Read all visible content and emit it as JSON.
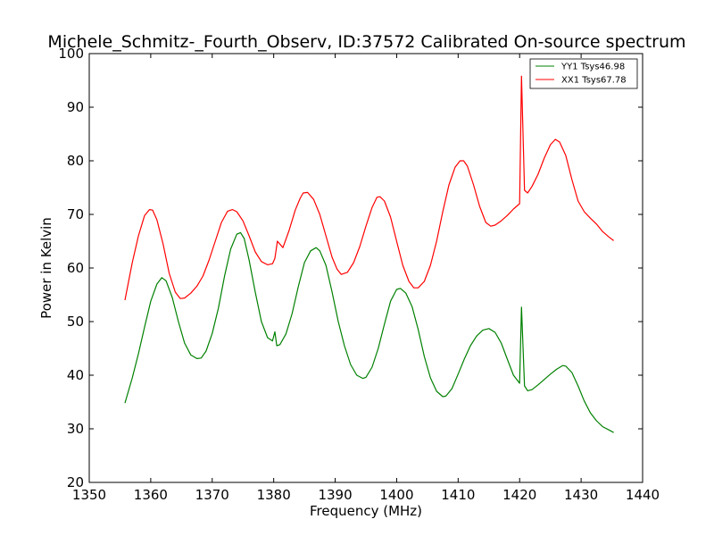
{
  "chart_data": {
    "type": "line",
    "title": "Michele_Schmitz-_Fourth_Observ, ID:37572 Calibrated On-source spectrum",
    "xlabel": "Frequency (MHz)",
    "ylabel": "Power in Kelvin",
    "xlim": [
      1350,
      1440
    ],
    "ylim": [
      20,
      100
    ],
    "xticks": [
      1350,
      1360,
      1370,
      1380,
      1390,
      1400,
      1410,
      1420,
      1430,
      1440
    ],
    "yticks": [
      20,
      30,
      40,
      50,
      60,
      70,
      80,
      90,
      100
    ],
    "grid": false,
    "legend_position": "top-right",
    "series": [
      {
        "name": "YY1 Tsys46.98",
        "color": "#008000",
        "x": [
          1355.8,
          1357,
          1358,
          1359,
          1360,
          1361,
          1361.8,
          1362.5,
          1363.5,
          1364.5,
          1365.5,
          1366.5,
          1367.5,
          1368.2,
          1369,
          1370,
          1371,
          1372,
          1373,
          1374,
          1374.6,
          1375.2,
          1376,
          1377,
          1378,
          1379,
          1379.8,
          1380.2,
          1380.5,
          1381,
          1382,
          1383,
          1384,
          1385,
          1386,
          1386.9,
          1387.5,
          1388.5,
          1389.5,
          1390.5,
          1391.5,
          1392.5,
          1393.5,
          1394.5,
          1395,
          1396,
          1397,
          1398,
          1399,
          1400,
          1400.6,
          1401.5,
          1402.5,
          1403.5,
          1404.5,
          1405.5,
          1406.5,
          1407.5,
          1408,
          1409,
          1410,
          1411,
          1412,
          1413,
          1414,
          1415,
          1416,
          1417,
          1418,
          1419,
          1420,
          1420.3,
          1420.8,
          1421.3,
          1422,
          1423,
          1424,
          1425,
          1426,
          1427,
          1427.5,
          1428.5,
          1429.5,
          1430.5,
          1431.5,
          1432.5,
          1433.5,
          1434.5,
          1435.3
        ],
        "values": [
          34.8,
          39.5,
          44,
          49,
          53.8,
          57,
          58.2,
          57.6,
          54.5,
          50,
          46,
          43.8,
          43.1,
          43.2,
          44.5,
          47.8,
          52.5,
          58.5,
          63.5,
          66.3,
          66.6,
          65.5,
          61.5,
          55.5,
          50,
          47,
          46.4,
          48.1,
          45.5,
          45.7,
          47.7,
          51.5,
          56.5,
          61,
          63.2,
          63.8,
          63.2,
          60.5,
          55.5,
          50,
          45.5,
          42,
          40,
          39.4,
          39.6,
          41.5,
          45,
          49.5,
          53.8,
          56,
          56.2,
          55.3,
          52.8,
          48.5,
          43.5,
          39.5,
          37,
          36,
          36.1,
          37.5,
          40.2,
          43,
          45.5,
          47.3,
          48.4,
          48.7,
          48,
          46,
          43,
          40,
          38.5,
          52.7,
          38,
          37.1,
          37.3,
          38.2,
          39.2,
          40.2,
          41.1,
          41.8,
          41.7,
          40.5,
          38,
          35.2,
          33,
          31.5,
          30.4,
          29.8,
          29.3
        ]
      },
      {
        "name": "XX1 Tsys67.78",
        "color": "#ff0000",
        "x": [
          1355.8,
          1357,
          1358,
          1359,
          1359.8,
          1360.3,
          1361,
          1362,
          1363,
          1364,
          1364.8,
          1365.5,
          1366.5,
          1367.5,
          1368.5,
          1369.5,
          1370.5,
          1371.5,
          1372.5,
          1373.3,
          1374,
          1375,
          1376,
          1377,
          1378,
          1379,
          1379.8,
          1380.2,
          1380.6,
          1381.5,
          1382.5,
          1383.5,
          1384.3,
          1384.8,
          1385.5,
          1386.5,
          1387.5,
          1388.5,
          1389.5,
          1390.3,
          1391,
          1392,
          1393,
          1394,
          1395,
          1396,
          1396.8,
          1397.3,
          1398,
          1399,
          1400,
          1401,
          1402,
          1402.8,
          1403.5,
          1404.5,
          1405.5,
          1406.5,
          1407.5,
          1408.5,
          1409.5,
          1410.3,
          1410.9,
          1411.5,
          1412.5,
          1413.5,
          1414.5,
          1415.3,
          1416,
          1417,
          1418,
          1419,
          1420,
          1420.3,
          1420.8,
          1421.3,
          1422,
          1423,
          1424,
          1425,
          1425.8,
          1426.5,
          1427.5,
          1428.5,
          1429.5,
          1430.5,
          1431.5,
          1432.5,
          1433.5,
          1434.5,
          1435.3
        ],
        "values": [
          54,
          61,
          66,
          69.8,
          70.9,
          70.8,
          69,
          64.5,
          59,
          55.5,
          54.3,
          54.4,
          55.3,
          56.6,
          58.5,
          61.5,
          65,
          68.5,
          70.6,
          70.9,
          70.5,
          68.8,
          66,
          63,
          61.2,
          60.6,
          60.8,
          61.8,
          65,
          63.8,
          67,
          70.8,
          73,
          74,
          74.1,
          72.8,
          70,
          66,
          62,
          59.8,
          58.8,
          59.2,
          61,
          64,
          67.8,
          71.3,
          73.2,
          73.3,
          72.5,
          69.5,
          65,
          60.5,
          57.5,
          56.3,
          56.3,
          57.5,
          60.5,
          65,
          70.5,
          75.5,
          78.8,
          80,
          80,
          79,
          75.5,
          71.5,
          68.5,
          67.8,
          68,
          68.8,
          69.8,
          71,
          72,
          95.8,
          74.5,
          74,
          75.2,
          77.5,
          80.5,
          83,
          84,
          83.5,
          81,
          76.5,
          72.5,
          70.5,
          69.3,
          68.2,
          66.8,
          65.8,
          65.1
        ]
      }
    ]
  }
}
